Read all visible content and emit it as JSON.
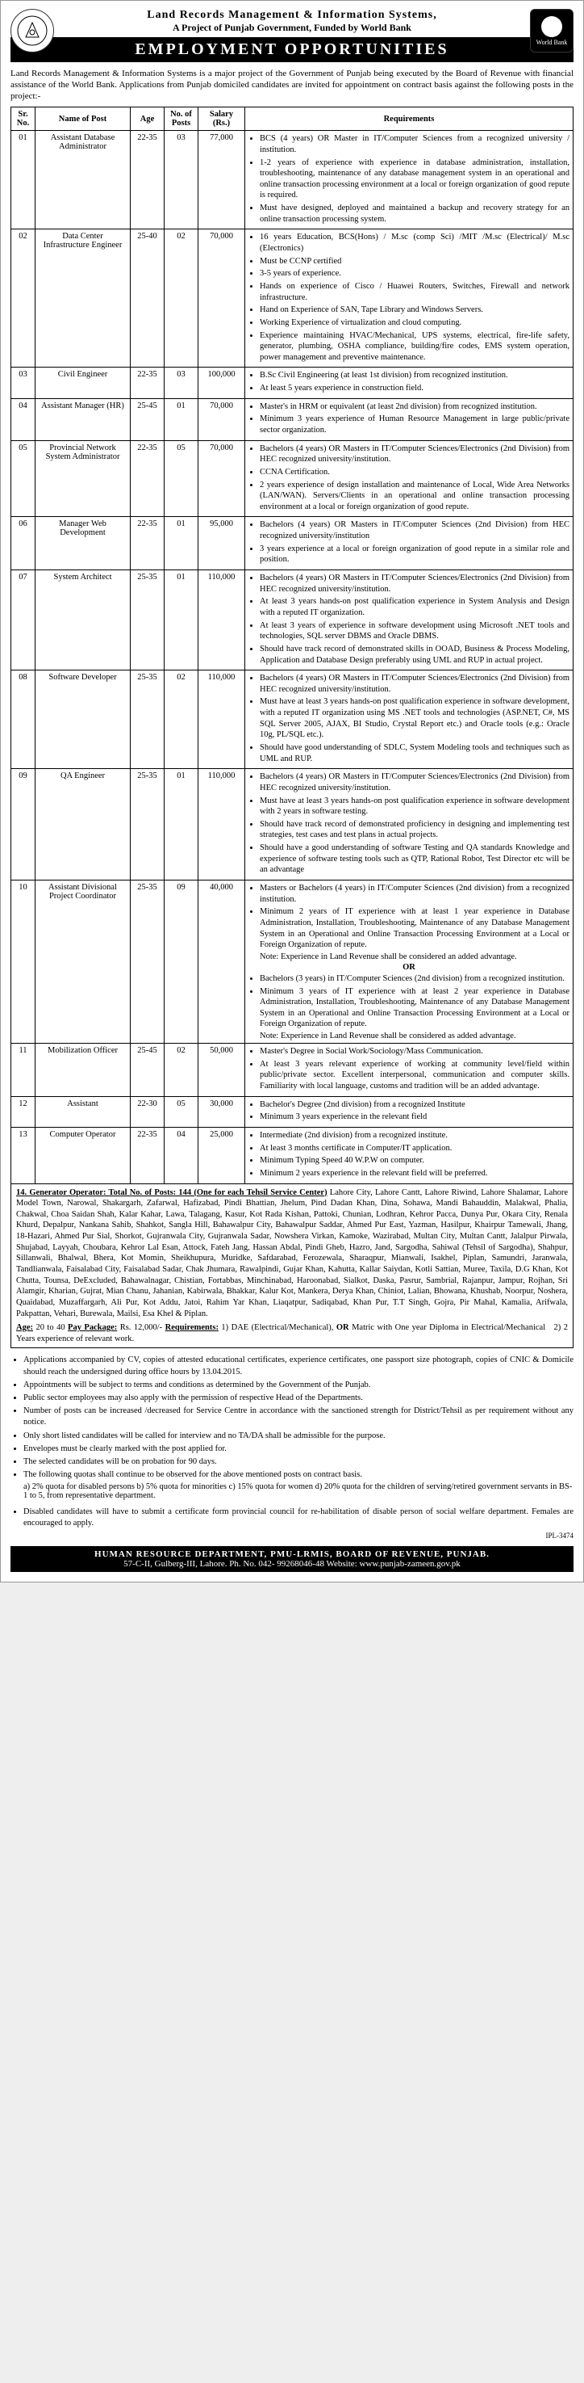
{
  "header": {
    "org": "Land Records Management & Information Systems,",
    "tagline": "A Project of Punjab Government, Funded by World Bank",
    "banner": "EMPLOYMENT OPPORTUNITIES",
    "wb_label": "World Bank"
  },
  "intro": "Land Records Management & Information Systems is a major project of the Government of Punjab being executed by the Board of Revenue with financial assistance of the World Bank. Applications from Punjab domiciled candidates are invited for appointment on contract basis against the following posts in the project:-",
  "columns": [
    "Sr. No.",
    "Name of Post",
    "Age",
    "No. of Posts",
    "Salary (Rs.)",
    "Requirements"
  ],
  "jobs": [
    {
      "sr": "01",
      "name": "Assistant Database Administrator",
      "age": "22-35",
      "num": "03",
      "sal": "77,000",
      "req": [
        "BCS (4 years) OR Master in IT/Computer Sciences from a recognized university / institution.",
        "1-2 years of experience with experience in database administration, installation, troubleshooting, maintenance of any database management system in an operational and online transaction processing environment at a local or foreign organization of good repute is required.",
        "Must have designed, deployed and maintained a backup and recovery strategy for an online transaction processing system."
      ]
    },
    {
      "sr": "02",
      "name": "Data Center Infrastructure Engineer",
      "age": "25-40",
      "num": "02",
      "sal": "70,000",
      "req": [
        "16 years Education, BCS(Hons) / M.sc (comp Sci) /MIT /M.sc (Electrical)/ M.sc (Electronics)",
        "Must be CCNP certified",
        "3-5 years of experience.",
        "Hands on experience of Cisco / Huawei Routers, Switches, Firewall and network infrastructure.",
        "Hand on Experience of SAN, Tape Library and Windows Servers.",
        "Working Experience of virtualization and cloud computing.",
        "Experience maintaining HVAC/Mechanical, UPS systems, electrical, fire-life safety, generator, plumbing, OSHA compliance, building/fire codes, EMS system operation, power management and preventive maintenance."
      ]
    },
    {
      "sr": "03",
      "name": "Civil Engineer",
      "age": "22-35",
      "num": "03",
      "sal": "100,000",
      "req": [
        "B.Sc Civil Engineering (at least 1st division) from recognized institution.",
        "At least 5 years experience in construction field."
      ]
    },
    {
      "sr": "04",
      "name": "Assistant Manager (HR)",
      "age": "25-45",
      "num": "01",
      "sal": "70,000",
      "req": [
        "Master's in HRM or equivalent (at least 2nd division) from recognized institution.",
        "Minimum 3 years experience of Human Resource Management in large public/private sector organization."
      ]
    },
    {
      "sr": "05",
      "name": "Provincial Network System Administrator",
      "age": "22-35",
      "num": "05",
      "sal": "70,000",
      "req": [
        "Bachelors (4 years) OR Masters in IT/Computer Sciences/Electronics (2nd Division) from HEC recognized university/institution.",
        "CCNA Certification.",
        "2 years experience of design installation and maintenance of Local, Wide Area Networks (LAN/WAN). Servers/Clients in an operational and online transaction processing environment at a local or foreign organization of good repute."
      ]
    },
    {
      "sr": "06",
      "name": "Manager Web Development",
      "age": "22-35",
      "num": "01",
      "sal": "95,000",
      "req": [
        "Bachelors (4 years) OR Masters in IT/Computer Sciences (2nd Division) from HEC recognized university/institution",
        "3 years experience at a local or foreign organization of good repute in a similar role and position."
      ]
    },
    {
      "sr": "07",
      "name": "System Architect",
      "age": "25-35",
      "num": "01",
      "sal": "110,000",
      "req": [
        "Bachelors (4 years) OR Masters in IT/Computer Sciences/Electronics (2nd Division) from HEC recognized university/institution.",
        "At least 3 years hands-on post qualification experience in System Analysis and Design with a reputed IT organization.",
        "At least 3 years of experience in software development using Microsoft .NET tools and technologies, SQL server DBMS and Oracle DBMS.",
        "Should have track record of demonstrated skills in OOAD, Business & Process Modeling, Application and Database Design preferably using UML and RUP in actual project."
      ]
    },
    {
      "sr": "08",
      "name": "Software Developer",
      "age": "25-35",
      "num": "02",
      "sal": "110,000",
      "req": [
        "Bachelors (4 years) OR Masters in IT/Computer Sciences/Electronics (2nd Division) from HEC recognized university/institution.",
        "Must have at least 3 years hands-on post qualification experience in software development, with a reputed IT organization using MS .NET tools and technologies (ASP.NET, C#, MS SQL Server 2005, AJAX, BI Studio, Crystal Report etc.) and Oracle tools (e.g.: Oracle 10g, PL/SQL etc.).",
        "Should have good understanding of SDLC, System Modeling tools and techniques such as UML and RUP."
      ]
    },
    {
      "sr": "09",
      "name": "QA Engineer",
      "age": "25-35",
      "num": "01",
      "sal": "110,000",
      "req": [
        "Bachelors (4 years) OR Masters in IT/Computer Sciences/Electronics (2nd Division) from HEC recognized university/institution.",
        "Must have at least 3 years hands-on post qualification experience in software development with 2 years in software testing.",
        "Should have track record of demonstrated proficiency in designing and implementing test strategies, test cases and test plans in actual projects.",
        "Should have a good understanding of software Testing and QA standards Knowledge and experience of software testing tools such as QTP, Rational Robot, Test Director etc will be an advantage"
      ]
    },
    {
      "sr": "10",
      "name": "Assistant Divisional Project Coordinator",
      "age": "25-35",
      "num": "09",
      "sal": "40,000",
      "req_a": [
        "Masters or Bachelors (4 years) in IT/Computer Sciences (2nd division) from a recognized institution.",
        "Minimum 2 years of IT experience with at least 1 year experience in Database Administration, Installation, Troubleshooting, Maintenance of any Database Management System in an Operational and Online Transaction Processing Environment at a Local or Foreign Organization of repute."
      ],
      "note_a": "Note: Experience in Land Revenue shall be considered an added advantage.",
      "or": "OR",
      "req_b": [
        "Bachelors (3 years) in IT/Computer Sciences (2nd division) from a recognized institution.",
        "Minimum 3 years of IT experience with at least 2 year experience in Database Administration, Installation, Troubleshooting, Maintenance of any Database Management System in an Operational and Online Transaction Processing Environment at a Local or Foreign Organization of repute."
      ],
      "note_b": "Note: Experience in Land Revenue shall be considered as added advantage."
    },
    {
      "sr": "11",
      "name": "Mobilization Officer",
      "age": "25-45",
      "num": "02",
      "sal": "50,000",
      "req": [
        "Master's Degree in Social Work/Sociology/Mass Communication.",
        "At least 3 years relevant experience of working at community level/field within public/private sector. Excellent interpersonal, communication and computer skills. Familiarity with local language, customs and tradition will be an added advantage."
      ]
    },
    {
      "sr": "12",
      "name": "Assistant",
      "age": "22-30",
      "num": "05",
      "sal": "30,000",
      "req": [
        "Bachelor's Degree (2nd division) from a recognized Institute",
        "Minimum 3 years experience in the relevant field"
      ]
    },
    {
      "sr": "13",
      "name": "Computer Operator",
      "age": "22-35",
      "num": "04",
      "sal": "25,000",
      "req": [
        "Intermediate (2nd division) from a recognized institute.",
        "At least 3 months certificate in Computer/IT application.",
        "Minimum Typing Speed 40 W.P.W on computer.",
        "Minimum 2 years experience in the relevant field will be preferred."
      ]
    }
  ],
  "generator": {
    "title": "14. Generator Operator: Total No. of Posts: 144 (One for each Tehsil Service Center)",
    "cities": "Lahore City, Lahore Cantt, Lahore Riwind, Lahore Shalamar, Lahore Model Town, Narowal, Shakargarh, Zafarwal, Hafizabad, Pindi Bhattian, Jhelum, Pind Dadan Khan, Dina, Sohawa, Mandi Bahauddin, Malakwal, Phalia, Chakwal, Choa Saidan Shah, Kalar Kahar, Lawa, Talagang, Kasur, Kot Rada Kishan, Pattoki, Chunian, Lodhran, Kehror Pacca, Dunya Pur, Okara City, Renala Khurd, Depalpur, Nankana Sahib, Shahkot, Sangla Hill, Bahawalpur City, Bahawalpur Saddar, Ahmed Pur East, Yazman, Hasilpur, Khairpur Tamewali, Jhang, 18-Hazari, Ahmed Pur Sial, Shorkot, Gujranwala City, Gujranwala Sadar, Nowshera Virkan, Kamoke, Wazirabad, Multan City, Multan Cantt, Jalalpur Pirwala, Shujabad, Layyah, Choubara, Kehror Lal Esan, Attock, Fateh Jang, Hassan Abdal, Pindi Gheb, Hazro, Jand, Sargodha, Sahiwal (Tehsil of Sargodha), Shahpur, Sillanwali, Bhalwal, Bhera, Kot Momin, Sheikhupura, Muridke, Safdarabad, Ferozewala, Sharaqpur, Mianwali, Isakhel, Piplan, Samundri, Jaranwala, Tandlianwala, Faisalabad City, Faisalabad Sadar, Chak Jhumara, Rawalpindi, Gujar Khan, Kahutta, Kallar Saiydan, Kotli Sattian, Muree, Taxila, D.G Khan, Kot Chutta, Tounsa, DeExcluded, Bahawalnagar, Chistian, Fortabbas, Minchinabad, Haroonabad, Sialkot, Daska, Pasrur, Sambrial, Rajanpur, Jampur, Rojhan, Sri Alamgir, Kharian, Gujrat, Mian Chanu, Jahanian, Kabirwala, Bhakkar, Kalur Kot, Mankera, Derya Khan, Chiniot, Lalian, Bhowana, Khushab, Noorpur, Noshera, Quaidabad, Muzaffargarh, Ali Pur, Kot Addu, Jatoi, Rahim Yar Khan, Liaqatpur, Sadiqabad, Khan Pur, T.T Singh, Gojra, Pir Mahal, Kamalia, Arifwala, Pakpattan, Vehari, Burewala, Mailsi, Esa Khel & Piplan.",
    "age_line": "Age: 20 to 40 Pay Package: Rs. 12,000/- Requirements: 1) DAE (Electrical/Mechanical), OR Matric with One year Diploma in Electrical/Mechanical 2) 2 Years experience of relevant work."
  },
  "notes": [
    "Applications accompanied by CV, copies of attested educational certificates, experience certificates, one passport size photograph, copies of CNIC & Domicile should reach the undersigned during office hours by 13.04.2015.",
    "Appointments will be subject to terms and conditions as determined by the Government of the Punjab.",
    "Public sector employees may also apply with the permission of respective Head of the Departments.",
    "Number of posts can be increased /decreased for Service Centre in accordance with the sanctioned strength for District/Tehsil as per requirement without any notice.",
    "Only short listed candidates will be called for interview and no TA/DA shall be admissible for the purpose.",
    "Envelopes must be clearly marked with the post applied for.",
    "The selected candidates will be on probation for 90 days.",
    "The following quotas shall continue to be observed for the above mentioned posts on contract basis."
  ],
  "quotas": "a) 2% quota for disabled persons    b) 5% quota for minorities    c) 15% quota for women    d) 20% quota for the children of serving/retired government servants in BS-1 to 5, from representative department.",
  "note_last": "Disabled candidates will have to submit a certificate form provincial council for re-habilitation of disable person of social welfare department. Females are encouraged to apply.",
  "ipl": "IPL-3474",
  "footer": {
    "line1": "HUMAN RESOURCE DEPARTMENT, PMU-LRMIS, BOARD OF REVENUE, PUNJAB.",
    "line2": "57-C-II, Gulberg-III, Lahore. Ph. No. 042- 99268046-48    Website: www.punjab-zameen.gov.pk"
  }
}
